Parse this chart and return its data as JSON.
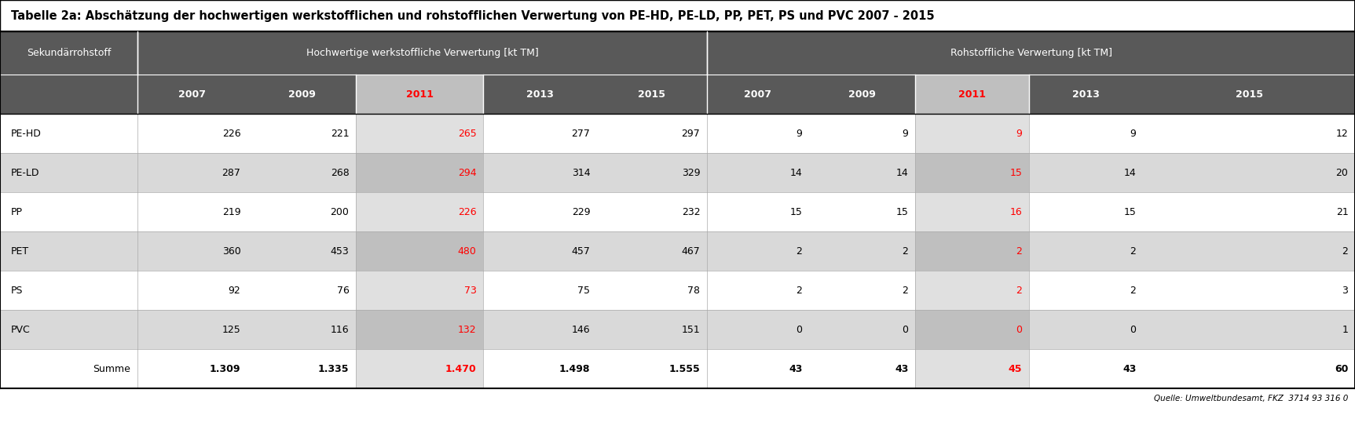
{
  "title": "Tabelle 2a: Abschätzung der hochwertigen werkstofflichen und rohstofflichen Verwertung von PE-HD, PE-LD, PP, PET, PS und PVC 2007 - 2015",
  "header_row1_col1": "Sekundärrohstoff",
  "header_row1_col2": "Hochwertige werkstoffliche Verwertung [kt TM]",
  "header_row1_col3": "Rohstoffliche Verwertung [kt TM]",
  "years": [
    "2007",
    "2009",
    "2011",
    "2013",
    "2015"
  ],
  "rows": [
    {
      "label": "PE-HD",
      "werk": [
        226,
        221,
        265,
        277,
        297
      ],
      "roh": [
        9,
        9,
        9,
        9,
        12
      ]
    },
    {
      "label": "PE-LD",
      "werk": [
        287,
        268,
        294,
        314,
        329
      ],
      "roh": [
        14,
        14,
        15,
        14,
        20
      ]
    },
    {
      "label": "PP",
      "werk": [
        219,
        200,
        226,
        229,
        232
      ],
      "roh": [
        15,
        15,
        16,
        15,
        21
      ]
    },
    {
      "label": "PET",
      "werk": [
        360,
        453,
        480,
        457,
        467
      ],
      "roh": [
        2,
        2,
        2,
        2,
        2
      ]
    },
    {
      "label": "PS",
      "werk": [
        92,
        76,
        73,
        75,
        78
      ],
      "roh": [
        2,
        2,
        2,
        2,
        3
      ]
    },
    {
      "label": "PVC",
      "werk": [
        125,
        116,
        132,
        146,
        151
      ],
      "roh": [
        0,
        0,
        0,
        0,
        1
      ]
    }
  ],
  "summe_werk": [
    1309,
    1335,
    1470,
    1498,
    1555
  ],
  "summe_roh": [
    43,
    43,
    45,
    43,
    60
  ],
  "source": "Quelle: Umweltbundesamt, FKZ  3714 93 316 0",
  "title_bg": "#ffffff",
  "header_bg": "#595959",
  "header_fg": "#ffffff",
  "row_bg_odd": "#ffffff",
  "row_bg_even": "#d9d9d9",
  "summe_bg": "#ffffff",
  "border_color": "#000000",
  "col_sep_color": "#ffffff",
  "highlight_col_bg": "#bfbfbf",
  "highlight_col_text": "#ff0000"
}
